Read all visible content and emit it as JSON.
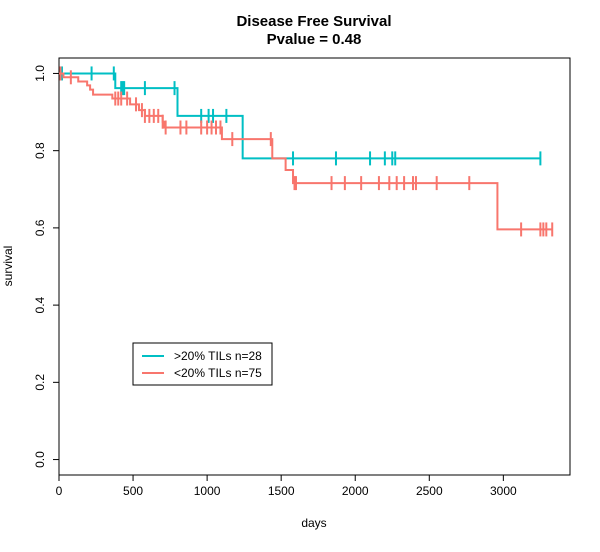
{
  "chart_data": {
    "type": "line",
    "title": "Disease Free Survival",
    "subtitle": "Pvalue = 0.48",
    "xlabel": "days",
    "ylabel": "survival",
    "xlim": [
      0,
      3450
    ],
    "ylim": [
      -0.04,
      1.04
    ],
    "xticks": [
      0,
      500,
      1000,
      1500,
      2000,
      2500,
      3000
    ],
    "yticks": [
      0.0,
      0.2,
      0.4,
      0.6,
      0.8,
      1.0
    ],
    "xtick_labels": [
      "0",
      "500",
      "1000",
      "1500",
      "2000",
      "2500",
      "3000"
    ],
    "ytick_labels": [
      "0.0",
      "0.2",
      "0.4",
      "0.6",
      "0.8",
      "1.0"
    ],
    "grid": false,
    "legend_position": "bottom-left",
    "series": [
      {
        "name": ">20% TILs n=28",
        "color": "#00BFC4",
        "steps": [
          [
            0,
            1.0
          ],
          [
            380,
            0.962
          ],
          [
            800,
            0.89
          ],
          [
            1240,
            0.78
          ],
          [
            3250,
            0.78
          ]
        ],
        "censor_times": [
          20,
          220,
          370,
          420,
          430,
          440,
          580,
          780,
          960,
          1010,
          1040,
          1130,
          1580,
          1870,
          2100,
          2200,
          2250,
          2270,
          3250
        ]
      },
      {
        "name": "<20% TILs n=75",
        "color": "#F8766D",
        "steps": [
          [
            0,
            1.0
          ],
          [
            30,
            0.99
          ],
          [
            130,
            0.979
          ],
          [
            190,
            0.969
          ],
          [
            210,
            0.958
          ],
          [
            230,
            0.945
          ],
          [
            360,
            0.935
          ],
          [
            400,
            0.935
          ],
          [
            480,
            0.92
          ],
          [
            540,
            0.905
          ],
          [
            580,
            0.89
          ],
          [
            700,
            0.875
          ],
          [
            710,
            0.86
          ],
          [
            1100,
            0.83
          ],
          [
            1440,
            0.78
          ],
          [
            1530,
            0.75
          ],
          [
            1580,
            0.716
          ],
          [
            2960,
            0.596
          ],
          [
            3330,
            0.596
          ]
        ],
        "censor_times": [
          10,
          80,
          380,
          400,
          420,
          460,
          520,
          560,
          580,
          610,
          640,
          670,
          700,
          720,
          820,
          860,
          960,
          1000,
          1030,
          1060,
          1090,
          1170,
          1430,
          1590,
          1600,
          1840,
          1930,
          2040,
          2160,
          2230,
          2280,
          2330,
          2390,
          2410,
          2550,
          2770,
          3120,
          3250,
          3270,
          3290,
          3330
        ]
      }
    ]
  }
}
